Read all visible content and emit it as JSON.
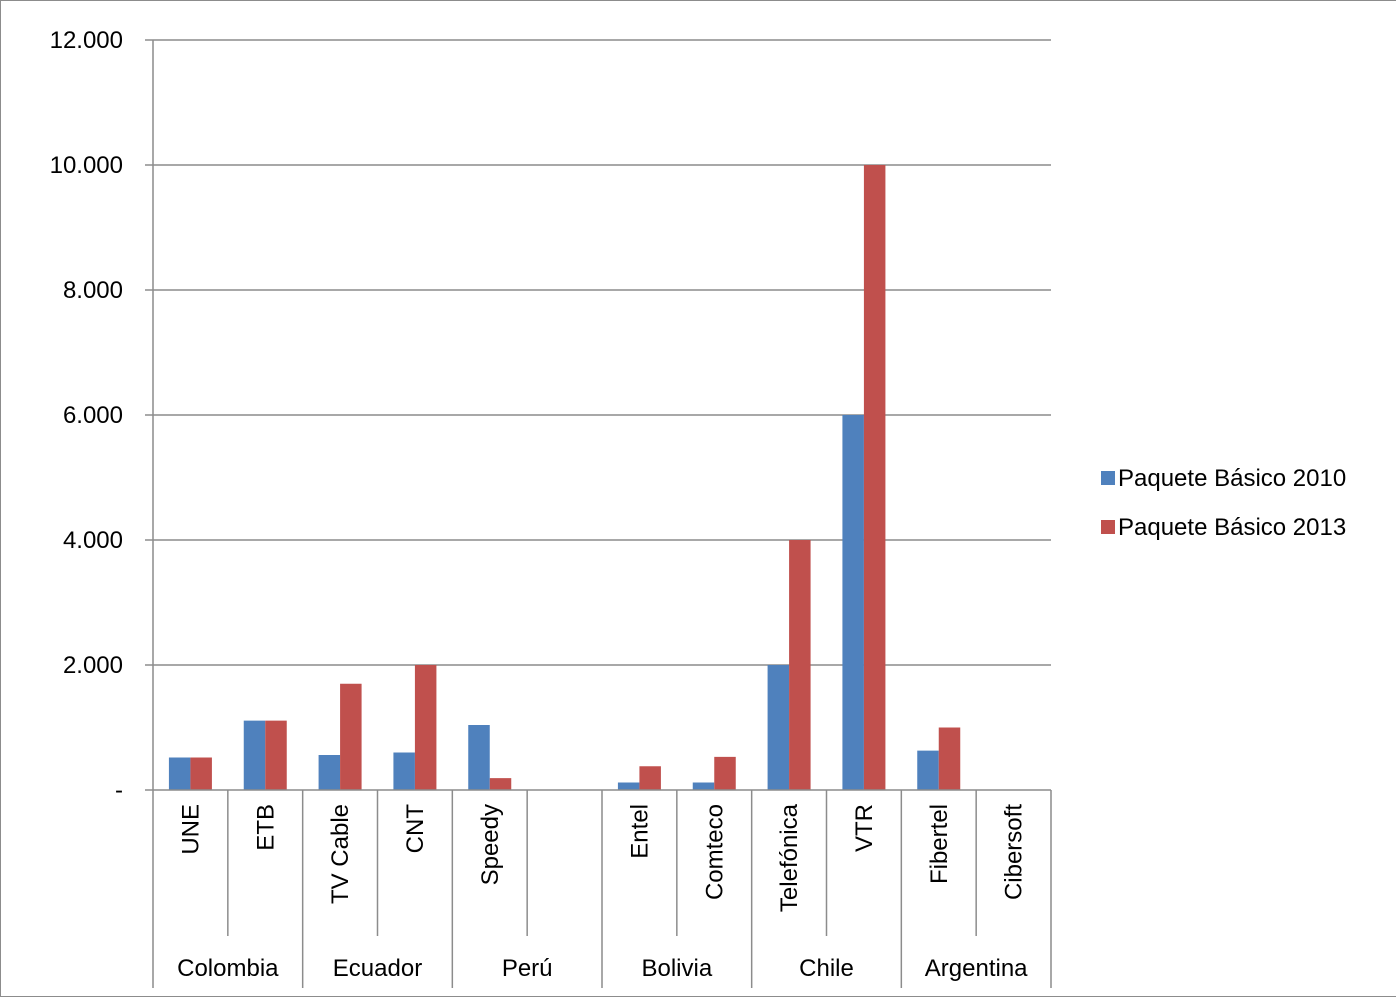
{
  "chart_data": {
    "type": "bar",
    "title": "",
    "xlabel": "",
    "ylabel": "",
    "ylim": [
      0,
      12000
    ],
    "yticks": [
      {
        "value": 0,
        "label": "-"
      },
      {
        "value": 2000,
        "label": "2.000"
      },
      {
        "value": 4000,
        "label": "4.000"
      },
      {
        "value": 6000,
        "label": "6.000"
      },
      {
        "value": 8000,
        "label": "8.000"
      },
      {
        "value": 10000,
        "label": "10.000"
      },
      {
        "value": 12000,
        "label": "12.000"
      }
    ],
    "grid": true,
    "legend_position": "right",
    "groups": [
      {
        "name": "Colombia",
        "span": 2
      },
      {
        "name": "Ecuador",
        "span": 2
      },
      {
        "name": "Perú",
        "span": 2
      },
      {
        "name": "Bolivia",
        "span": 2
      },
      {
        "name": "Chile",
        "span": 2
      },
      {
        "name": "Argentina",
        "span": 2
      }
    ],
    "categories": [
      "UNE",
      "ETB",
      "TV Cable",
      "CNT",
      "Speedy",
      "",
      "Entel",
      "Comteco",
      "Telefónica",
      "VTR",
      "Fibertel",
      "Cibersoft"
    ],
    "series": [
      {
        "name": "Paquete Básico 2010",
        "color": "#4f81bd",
        "values": [
          520,
          1110,
          560,
          600,
          1040,
          null,
          120,
          120,
          2000,
          6000,
          630,
          null
        ]
      },
      {
        "name": "Paquete Básico 2013",
        "color": "#c0504d",
        "values": [
          520,
          1110,
          1700,
          2000,
          190,
          null,
          380,
          530,
          4000,
          10000,
          1000,
          null
        ]
      }
    ]
  }
}
